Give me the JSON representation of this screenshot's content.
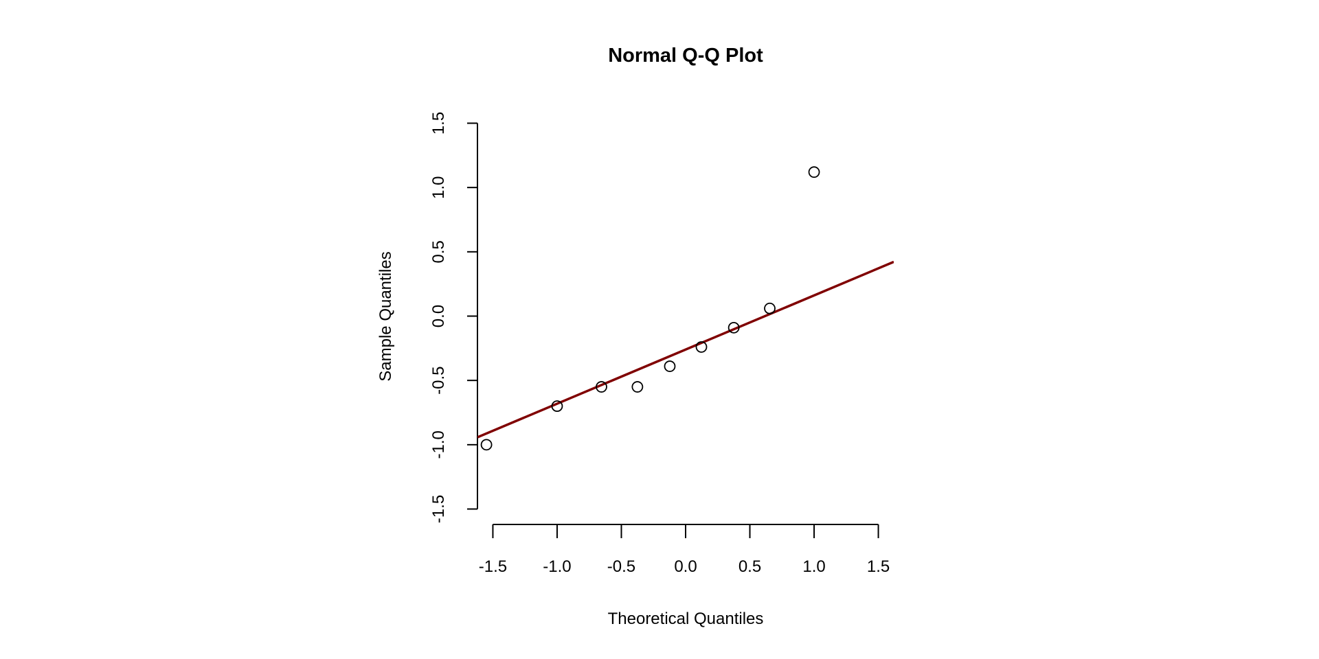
{
  "chart_data": {
    "type": "scatter",
    "title": "Normal Q-Q Plot",
    "xlabel": "Theoretical Quantiles",
    "ylabel": "Sample Quantiles",
    "xlim": [
      -1.62,
      1.62
    ],
    "ylim": [
      -1.62,
      1.62
    ],
    "xticks": [
      -1.5,
      -1.0,
      -0.5,
      0.0,
      0.5,
      1.0,
      1.5
    ],
    "xtick_labels": [
      "-1.5",
      "-1.0",
      "-0.5",
      "0.0",
      "0.5",
      "1.0",
      "1.5"
    ],
    "yticks": [
      -1.5,
      -1.0,
      -0.5,
      0.0,
      0.5,
      1.0,
      1.5
    ],
    "ytick_labels": [
      "-1.5",
      "-1.0",
      "-0.5",
      "0.0",
      "0.5",
      "1.0",
      "1.5"
    ],
    "grid": false,
    "points": [
      {
        "x": -1.55,
        "y": -1.0
      },
      {
        "x": -1.0,
        "y": -0.7
      },
      {
        "x": -0.655,
        "y": -0.55
      },
      {
        "x": -0.375,
        "y": -0.55
      },
      {
        "x": -0.123,
        "y": -0.39
      },
      {
        "x": 0.123,
        "y": -0.24
      },
      {
        "x": 0.375,
        "y": -0.09
      },
      {
        "x": 0.655,
        "y": 0.06
      },
      {
        "x": 1.0,
        "y": 1.12
      }
    ],
    "qq_line": {
      "intercept": -0.26,
      "slope": 0.421,
      "color": "#800000"
    },
    "point_color": "#000000"
  }
}
